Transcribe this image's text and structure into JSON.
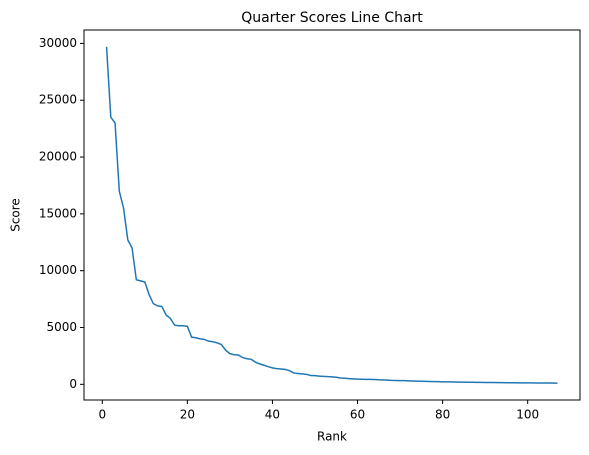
{
  "chart_data": {
    "type": "line",
    "title": "Quarter Scores Line Chart",
    "x_label": "Rank",
    "y_label": "Score",
    "x": [
      1,
      2,
      3,
      4,
      5,
      6,
      7,
      8,
      9,
      10,
      11,
      12,
      13,
      14,
      15,
      16,
      17,
      18,
      19,
      20,
      21,
      22,
      23,
      24,
      25,
      26,
      27,
      28,
      29,
      30,
      31,
      32,
      33,
      34,
      35,
      36,
      37,
      38,
      39,
      40,
      41,
      42,
      43,
      44,
      45,
      46,
      47,
      48,
      49,
      50,
      51,
      52,
      53,
      54,
      55,
      56,
      57,
      58,
      59,
      60,
      61,
      62,
      63,
      64,
      65,
      66,
      67,
      68,
      69,
      70,
      71,
      72,
      73,
      74,
      75,
      76,
      77,
      78,
      79,
      80,
      81,
      82,
      83,
      84,
      85,
      86,
      87,
      88,
      89,
      90,
      91,
      92,
      93,
      94,
      95,
      96,
      97,
      98,
      99,
      100,
      101,
      102,
      103,
      104,
      105,
      106,
      107
    ],
    "series": [
      {
        "color": "#1f77b4",
        "values": [
          29700,
          23500,
          23000,
          17000,
          15500,
          12700,
          12000,
          9200,
          9100,
          9000,
          7900,
          7100,
          6900,
          6850,
          6100,
          5800,
          5200,
          5150,
          5150,
          5100,
          4150,
          4100,
          4000,
          3950,
          3800,
          3750,
          3650,
          3500,
          3000,
          2700,
          2600,
          2580,
          2350,
          2250,
          2200,
          1950,
          1800,
          1680,
          1550,
          1450,
          1380,
          1350,
          1320,
          1200,
          1000,
          950,
          920,
          880,
          780,
          760,
          720,
          700,
          680,
          660,
          620,
          560,
          530,
          500,
          480,
          460,
          450,
          440,
          430,
          420,
          400,
          390,
          370,
          350,
          340,
          330,
          320,
          305,
          290,
          280,
          270,
          260,
          250,
          240,
          235,
          220,
          215,
          210,
          200,
          195,
          190,
          185,
          180,
          175,
          170,
          165,
          160,
          155,
          150,
          145,
          140,
          138,
          135,
          132,
          130,
          128,
          125,
          120,
          118,
          115,
          112,
          110,
          105
        ]
      }
    ],
    "xlim": [
      -4.3,
      112.3
    ],
    "ylim": [
      -1380,
      31180
    ],
    "xticks": [
      0,
      20,
      40,
      60,
      80,
      100
    ],
    "yticks": [
      0,
      5000,
      10000,
      15000,
      20000,
      25000,
      30000
    ]
  }
}
